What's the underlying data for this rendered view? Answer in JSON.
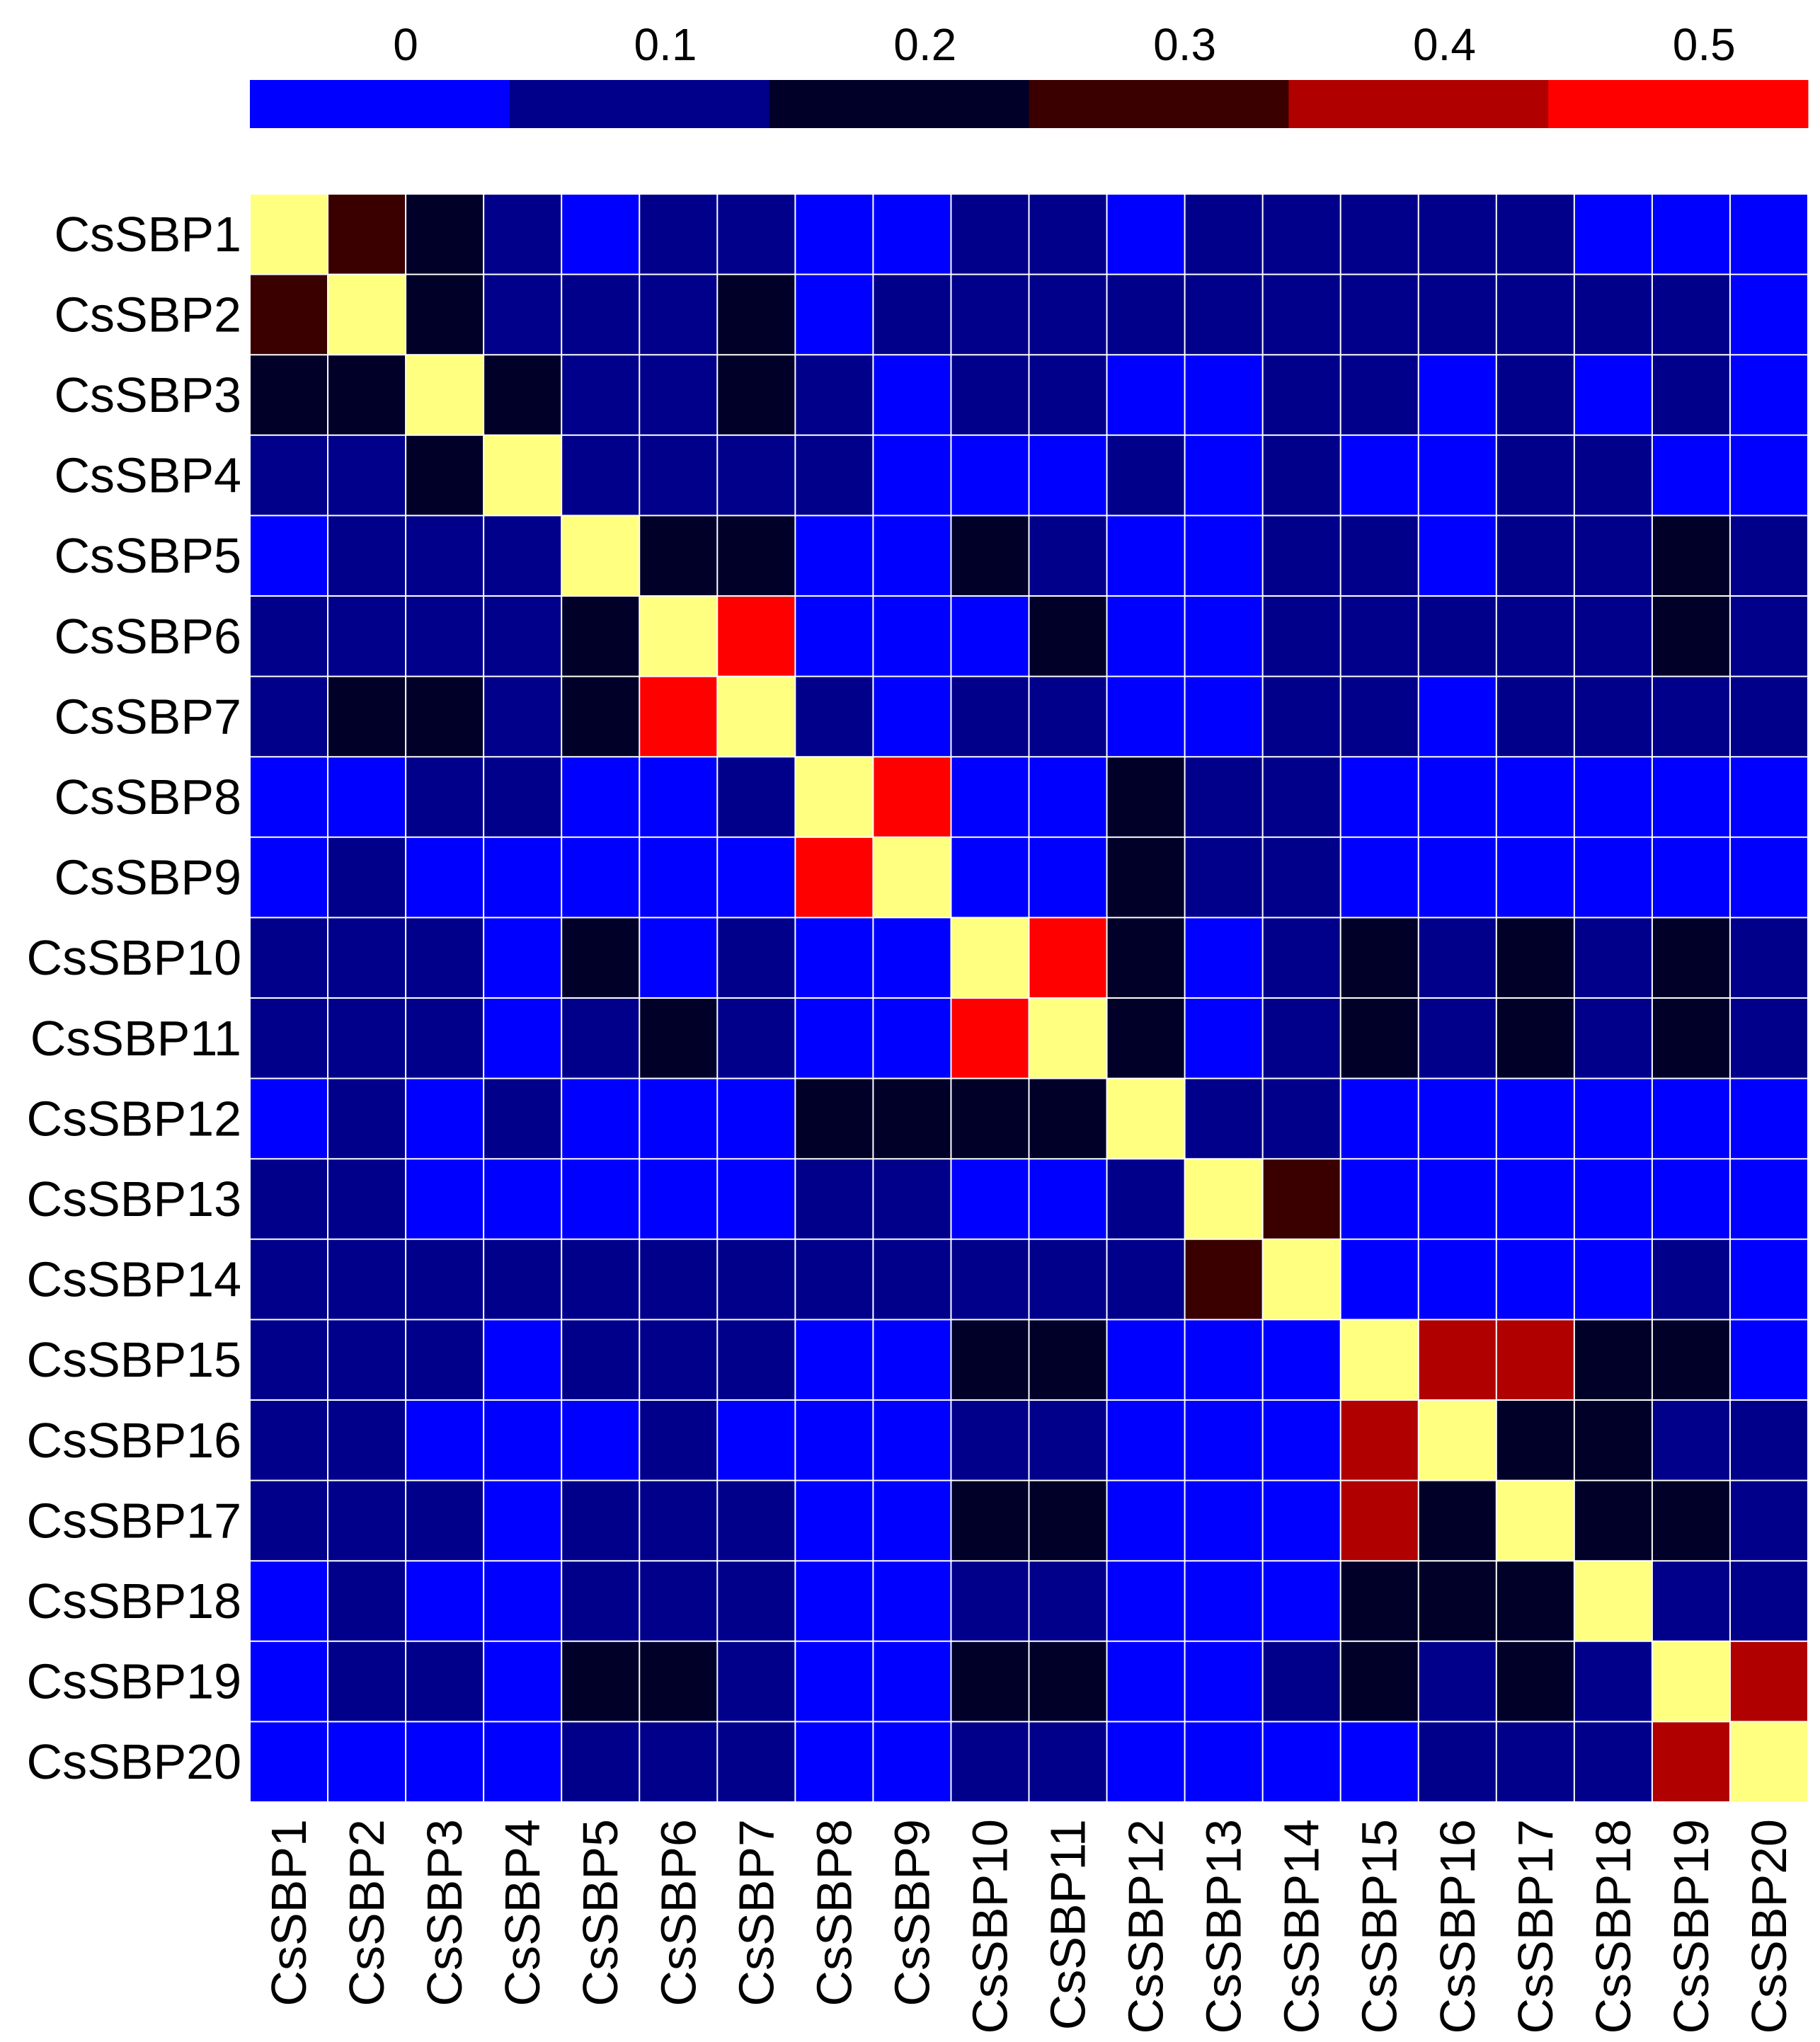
{
  "chart_data": {
    "type": "heatmap",
    "rows": [
      "CsSBP1",
      "CsSBP2",
      "CsSBP3",
      "CsSBP4",
      "CsSBP5",
      "CsSBP6",
      "CsSBP7",
      "CsSBP8",
      "CsSBP9",
      "CsSBP10",
      "CsSBP11",
      "CsSBP12",
      "CsSBP13",
      "CsSBP14",
      "CsSBP15",
      "CsSBP16",
      "CsSBP17",
      "CsSBP18",
      "CsSBP19",
      "CsSBP20"
    ],
    "columns": [
      "CsSBP1",
      "CsSBP2",
      "CsSBP3",
      "CsSBP4",
      "CsSBP5",
      "CsSBP6",
      "CsSBP7",
      "CsSBP8",
      "CsSBP9",
      "CsSBP10",
      "CsSBP11",
      "CsSBP12",
      "CsSBP13",
      "CsSBP14",
      "CsSBP15",
      "CsSBP16",
      "CsSBP17",
      "CsSBP18",
      "CsSBP19",
      "CsSBP20"
    ],
    "values": [
      [
        null,
        0.3,
        0.2,
        0.1,
        0,
        0.1,
        0.1,
        0,
        0,
        0.1,
        0.1,
        0,
        0.1,
        0.1,
        0.1,
        0.1,
        0.1,
        0,
        0,
        0
      ],
      [
        0.3,
        null,
        0.2,
        0.1,
        0.1,
        0.1,
        0.2,
        0,
        0.1,
        0.1,
        0.1,
        0.1,
        0.1,
        0.1,
        0.1,
        0.1,
        0.1,
        0.1,
        0.1,
        0
      ],
      [
        0.2,
        0.2,
        null,
        0.2,
        0.1,
        0.1,
        0.2,
        0.1,
        0,
        0.1,
        0.1,
        0,
        0,
        0.1,
        0.1,
        0,
        0.1,
        0,
        0.1,
        0
      ],
      [
        0.1,
        0.1,
        0.2,
        null,
        0.1,
        0.1,
        0.1,
        0.1,
        0,
        0,
        0,
        0.1,
        0,
        0.1,
        0,
        0,
        0.1,
        0.1,
        0,
        0
      ],
      [
        0,
        0.1,
        0.1,
        0.1,
        null,
        0.2,
        0.2,
        0,
        0,
        0.2,
        0.1,
        0,
        0,
        0.1,
        0.1,
        0,
        0.1,
        0.1,
        0.2,
        0.1
      ],
      [
        0.1,
        0.1,
        0.1,
        0.1,
        0.2,
        null,
        0.5,
        0,
        0,
        0,
        0.2,
        0,
        0,
        0.1,
        0.1,
        0.1,
        0.1,
        0.1,
        0.2,
        0.1
      ],
      [
        0.1,
        0.2,
        0.2,
        0.1,
        0.2,
        0.5,
        null,
        0.1,
        0,
        0.1,
        0.1,
        0,
        0,
        0.1,
        0.1,
        0,
        0.1,
        0.1,
        0.1,
        0.1
      ],
      [
        0,
        0,
        0.1,
        0.1,
        0,
        0,
        0.1,
        null,
        0.5,
        0,
        0,
        0.2,
        0.1,
        0.1,
        0,
        0,
        0,
        0,
        0,
        0
      ],
      [
        0,
        0.1,
        0,
        0,
        0,
        0,
        0,
        0.5,
        null,
        0,
        0,
        0.2,
        0.1,
        0.1,
        0,
        0,
        0,
        0,
        0,
        0
      ],
      [
        0.1,
        0.1,
        0.1,
        0,
        0.2,
        0,
        0.1,
        0,
        0,
        null,
        0.5,
        0.2,
        0,
        0.1,
        0.2,
        0.1,
        0.2,
        0.1,
        0.2,
        0.1
      ],
      [
        0.1,
        0.1,
        0.1,
        0,
        0.1,
        0.2,
        0.1,
        0,
        0,
        0.5,
        null,
        0.2,
        0,
        0.1,
        0.2,
        0.1,
        0.2,
        0.1,
        0.2,
        0.1
      ],
      [
        0,
        0.1,
        0,
        0.1,
        0,
        0,
        0,
        0.2,
        0.2,
        0.2,
        0.2,
        null,
        0.1,
        0.1,
        0,
        0,
        0,
        0,
        0,
        0
      ],
      [
        0.1,
        0.1,
        0,
        0,
        0,
        0,
        0,
        0.1,
        0.1,
        0,
        0,
        0.1,
        null,
        0.3,
        0,
        0,
        0,
        0,
        0,
        0
      ],
      [
        0.1,
        0.1,
        0.1,
        0.1,
        0.1,
        0.1,
        0.1,
        0.1,
        0.1,
        0.1,
        0.1,
        0.1,
        0.3,
        null,
        0,
        0,
        0,
        0,
        0.1,
        0
      ],
      [
        0.1,
        0.1,
        0.1,
        0,
        0.1,
        0.1,
        0.1,
        0,
        0,
        0.2,
        0.2,
        0,
        0,
        0,
        null,
        0.4,
        0.4,
        0.2,
        0.2,
        0
      ],
      [
        0.1,
        0.1,
        0,
        0,
        0,
        0.1,
        0,
        0,
        0,
        0.1,
        0.1,
        0,
        0,
        0,
        0.4,
        null,
        0.2,
        0.2,
        0.1,
        0.1
      ],
      [
        0.1,
        0.1,
        0.1,
        0,
        0.1,
        0.1,
        0.1,
        0,
        0,
        0.2,
        0.2,
        0,
        0,
        0,
        0.4,
        0.2,
        null,
        0.2,
        0.2,
        0.1
      ],
      [
        0,
        0.1,
        0,
        0,
        0.1,
        0.1,
        0.1,
        0,
        0,
        0.1,
        0.1,
        0,
        0,
        0,
        0.2,
        0.2,
        0.2,
        null,
        0.1,
        0.1
      ],
      [
        0,
        0.1,
        0.1,
        0,
        0.2,
        0.2,
        0.1,
        0,
        0,
        0.2,
        0.2,
        0,
        0,
        0.1,
        0.2,
        0.1,
        0.2,
        0.1,
        null,
        0.4
      ],
      [
        0,
        0,
        0,
        0,
        0.1,
        0.1,
        0.1,
        0,
        0,
        0.1,
        0.1,
        0,
        0,
        0,
        0,
        0.1,
        0.1,
        0.1,
        0.4,
        null
      ]
    ],
    "diagonal_color": "#ffff80",
    "grid_color": "#ffffff",
    "color_scale": {
      "labels": [
        "0",
        "0.1",
        "0.2",
        "0.3",
        "0.4",
        "0.5"
      ],
      "colors": [
        "#0000ff",
        "#00008b",
        "#000028",
        "#3a0000",
        "#b00000",
        "#ff0000"
      ],
      "position": "top"
    },
    "grid": true,
    "legend": "top"
  }
}
